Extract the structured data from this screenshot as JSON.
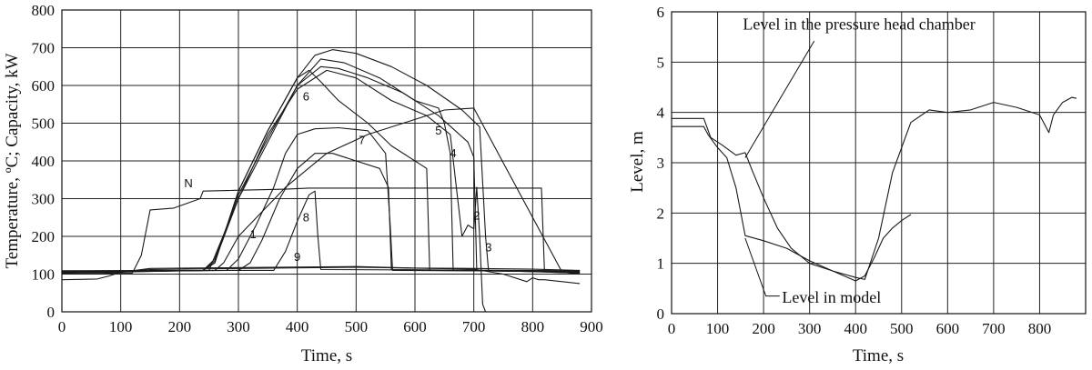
{
  "chart_data": [
    {
      "type": "line",
      "xlabel": "Time, s",
      "ylabel": "Temperature, ºC; Capacity, kW",
      "xlim": [
        0,
        900
      ],
      "ylim": [
        0,
        800
      ],
      "xticks": [
        "0",
        "100",
        "200",
        "300",
        "400",
        "500",
        "600",
        "700",
        "800",
        "900"
      ],
      "yticks": [
        "0",
        "100",
        "200",
        "300",
        "400",
        "500",
        "600",
        "700",
        "800"
      ],
      "grid": true,
      "series": [
        {
          "name": "N",
          "x": [
            0,
            120,
            135,
            150,
            190,
            235,
            240,
            380,
            420,
            590,
            800,
            815,
            820,
            830,
            880
          ],
          "y": [
            103,
            103,
            150,
            270,
            275,
            300,
            320,
            325,
            328,
            328,
            328,
            328,
            110,
            105,
            103
          ]
        },
        {
          "name": "1",
          "x": [
            0,
            260,
            275,
            300,
            380,
            450,
            520,
            600,
            650,
            700,
            850,
            880
          ],
          "y": [
            108,
            110,
            130,
            200,
            330,
            420,
            470,
            510,
            535,
            540,
            105,
            100
          ]
        },
        {
          "name": "2",
          "x": [
            0,
            250,
            300,
            350,
            400,
            450,
            500,
            560,
            620,
            660,
            680,
            690,
            700,
            705,
            710,
            715,
            720
          ],
          "y": [
            103,
            110,
            300,
            470,
            590,
            640,
            620,
            560,
            520,
            470,
            200,
            230,
            220,
            330,
            200,
            20,
            0
          ]
        },
        {
          "name": "3",
          "x": [
            0,
            240,
            260,
            300,
            350,
            400,
            430,
            460,
            500,
            560,
            620,
            680,
            710,
            720,
            725,
            880
          ],
          "y": [
            103,
            110,
            130,
            320,
            480,
            620,
            680,
            695,
            685,
            650,
            600,
            535,
            490,
            200,
            110,
            103
          ]
        },
        {
          "name": "4",
          "x": [
            0,
            240,
            260,
            300,
            350,
            400,
            440,
            470,
            520,
            580,
            640,
            690,
            700,
            705,
            880
          ],
          "y": [
            104,
            110,
            140,
            310,
            460,
            600,
            650,
            645,
            620,
            580,
            520,
            450,
            410,
            110,
            104
          ]
        },
        {
          "name": "5",
          "x": [
            0,
            240,
            260,
            300,
            350,
            400,
            440,
            480,
            540,
            600,
            640,
            650,
            660,
            665,
            880
          ],
          "y": [
            105,
            110,
            135,
            300,
            450,
            600,
            670,
            660,
            620,
            560,
            540,
            500,
            420,
            110,
            105
          ]
        },
        {
          "name": "6",
          "x": [
            0,
            240,
            260,
            300,
            350,
            400,
            420,
            440,
            470,
            520,
            560,
            610,
            620,
            625,
            880
          ],
          "y": [
            106,
            110,
            130,
            320,
            480,
            620,
            640,
            610,
            560,
            500,
            440,
            390,
            380,
            110,
            106
          ]
        },
        {
          "name": "7",
          "x": [
            0,
            280,
            300,
            330,
            360,
            380,
            400,
            430,
            470,
            520,
            550,
            558,
            562,
            880
          ],
          "y": [
            107,
            110,
            140,
            230,
            330,
            420,
            470,
            485,
            488,
            480,
            420,
            230,
            110,
            107
          ]
        },
        {
          "name": "8",
          "x": [
            0,
            300,
            320,
            340,
            370,
            400,
            430,
            460,
            500,
            540,
            555,
            560,
            880
          ],
          "y": [
            108,
            110,
            130,
            190,
            300,
            380,
            420,
            420,
            400,
            380,
            330,
            112,
            108
          ]
        },
        {
          "name": "9",
          "x": [
            0,
            360,
            380,
            400,
            420,
            430,
            435,
            440,
            880
          ],
          "y": [
            109,
            110,
            160,
            240,
            310,
            320,
            200,
            112,
            109
          ]
        },
        {
          "name": "",
          "x": [
            0,
            70,
            100,
            150,
            300,
            500,
            600,
            700,
            800,
            880
          ],
          "y": [
            100,
            100,
            105,
            112,
            115,
            118,
            116,
            115,
            113,
            110
          ]
        },
        {
          "name": "",
          "x": [
            0,
            60,
            80,
            100,
            150,
            500,
            600,
            700,
            750,
            790,
            800,
            810,
            820,
            880
          ],
          "y": [
            85,
            87,
            95,
            105,
            115,
            120,
            116,
            113,
            100,
            80,
            90,
            85,
            85,
            75
          ]
        }
      ],
      "annotations": [
        "N",
        "1",
        "2",
        "3",
        "4",
        "5",
        "6",
        "7",
        "8",
        "9"
      ]
    },
    {
      "type": "line",
      "xlabel": "Time, s",
      "ylabel": "Level, m",
      "xlim": [
        0,
        900
      ],
      "ylim": [
        0,
        6
      ],
      "xticks": [
        "0",
        "100",
        "200",
        "300",
        "400",
        "500",
        "600",
        "700",
        "800"
      ],
      "yticks": [
        "0",
        "1",
        "2",
        "3",
        "4",
        "5",
        "6"
      ],
      "grid": true,
      "series": [
        {
          "name": "Level in the pressure head chamber",
          "x": [
            0,
            70,
            85,
            110,
            140,
            160,
            175,
            200,
            230,
            260,
            300,
            350,
            400,
            420,
            450,
            480,
            520,
            560,
            600,
            650,
            700,
            750,
            800,
            820,
            830,
            850,
            870,
            880
          ],
          "y": [
            3.88,
            3.88,
            3.5,
            3.35,
            3.15,
            3.2,
            2.85,
            2.3,
            1.7,
            1.3,
            1.0,
            0.85,
            0.72,
            0.68,
            1.5,
            2.8,
            3.8,
            4.05,
            4.0,
            4.05,
            4.2,
            4.1,
            3.95,
            3.6,
            3.95,
            4.2,
            4.3,
            4.28
          ]
        },
        {
          "name": "Level in model",
          "x": [
            0,
            70,
            80,
            100,
            120,
            140,
            160,
            200,
            250,
            300,
            350,
            400,
            420,
            440,
            460,
            480,
            500,
            520
          ],
          "y": [
            3.72,
            3.72,
            3.55,
            3.3,
            3.1,
            2.5,
            1.55,
            1.45,
            1.3,
            1.05,
            0.85,
            0.65,
            0.75,
            1.1,
            1.5,
            1.7,
            1.85,
            1.97
          ]
        }
      ],
      "annotations": [
        "Level in the pressure head chamber",
        "Level in model"
      ]
    }
  ]
}
